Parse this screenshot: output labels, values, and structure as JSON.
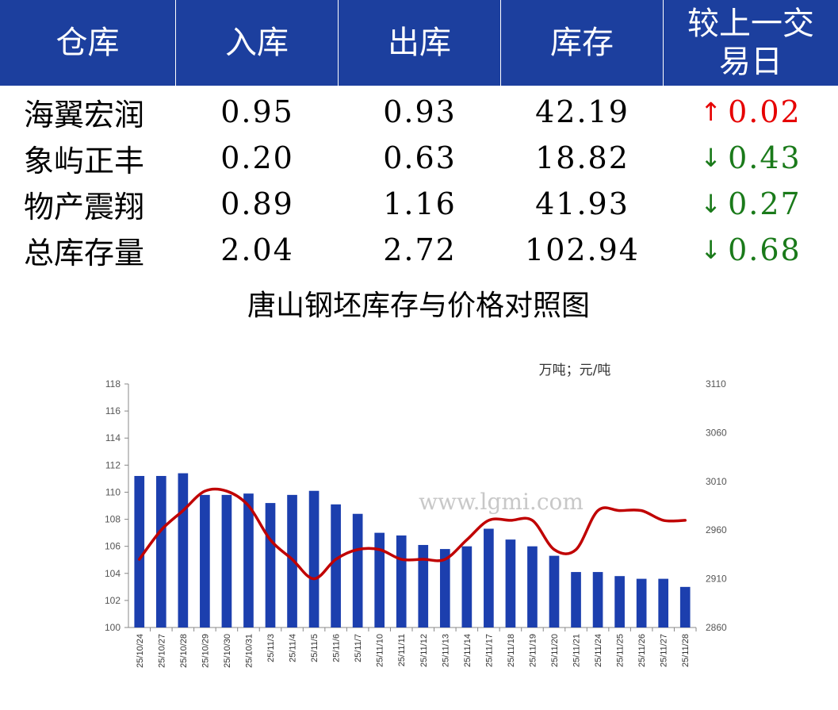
{
  "table": {
    "headers": [
      "仓库",
      "入库",
      "出库",
      "库存",
      "较上一交易日"
    ],
    "header_last_lines": [
      "较上一交",
      "易日"
    ],
    "rows": [
      {
        "name": "海翼宏润",
        "in": "0.95",
        "out": "0.93",
        "stock": "42.19",
        "dir": "up",
        "arrow": "↑",
        "delta": "0.02"
      },
      {
        "name": "象屿正丰",
        "in": "0.20",
        "out": "0.63",
        "stock": "18.82",
        "dir": "down",
        "arrow": "↓",
        "delta": "0.43"
      },
      {
        "name": "物产震翔",
        "in": "0.89",
        "out": "1.16",
        "stock": "41.93",
        "dir": "down",
        "arrow": "↓",
        "delta": "0.27"
      },
      {
        "name": "总库存量",
        "in": "2.04",
        "out": "2.72",
        "stock": "102.94",
        "dir": "down",
        "arrow": "↓",
        "delta": "0.68"
      }
    ],
    "colors": {
      "header_bg": "#1c3f9e",
      "up": "#e60000",
      "down": "#1a7a1a"
    }
  },
  "chart_data": {
    "type": "bar+line",
    "title": "唐山钢坯库存与价格对照图",
    "unit_label": "万吨；元/吨",
    "watermark": "www.lgmi.com",
    "categories": [
      "25/10/24",
      "25/10/27",
      "25/10/28",
      "25/10/29",
      "25/10/30",
      "25/10/31",
      "25/11/3",
      "25/11/4",
      "25/11/5",
      "25/11/6",
      "25/11/7",
      "25/11/10",
      "25/11/11",
      "25/11/12",
      "25/11/13",
      "25/11/14",
      "25/11/17",
      "25/11/18",
      "25/11/19",
      "25/11/20",
      "25/11/21",
      "25/11/24",
      "25/11/25",
      "25/11/26",
      "25/11/27",
      "25/11/28"
    ],
    "series": [
      {
        "kind": "bar",
        "axis": "left",
        "color": "#1c3fae",
        "values": [
          111.2,
          111.2,
          111.4,
          109.8,
          109.8,
          109.9,
          109.2,
          109.8,
          110.1,
          109.1,
          108.4,
          107.0,
          106.8,
          106.1,
          105.8,
          106.0,
          107.3,
          106.5,
          106.0,
          105.3,
          104.1,
          104.1,
          103.8,
          103.6,
          103.6,
          103.0
        ]
      },
      {
        "kind": "line",
        "axis": "right",
        "color": "#c00000",
        "values": [
          2930,
          2960,
          2980,
          3000,
          3000,
          2985,
          2950,
          2930,
          2910,
          2930,
          2940,
          2940,
          2930,
          2930,
          2930,
          2950,
          2970,
          2970,
          2970,
          2940,
          2940,
          2980,
          2980,
          2980,
          2970,
          2970
        ]
      }
    ],
    "y_left": {
      "min": 100,
      "max": 118,
      "step": 2,
      "ticks": [
        "100",
        "102",
        "104",
        "106",
        "108",
        "110",
        "112",
        "114",
        "116",
        "118"
      ]
    },
    "y_right": {
      "min": 2860,
      "max": 3110,
      "ticks": [
        "2860",
        "2910",
        "2960",
        "3010",
        "3060",
        "3110"
      ]
    },
    "grid": false,
    "legend": "none"
  }
}
